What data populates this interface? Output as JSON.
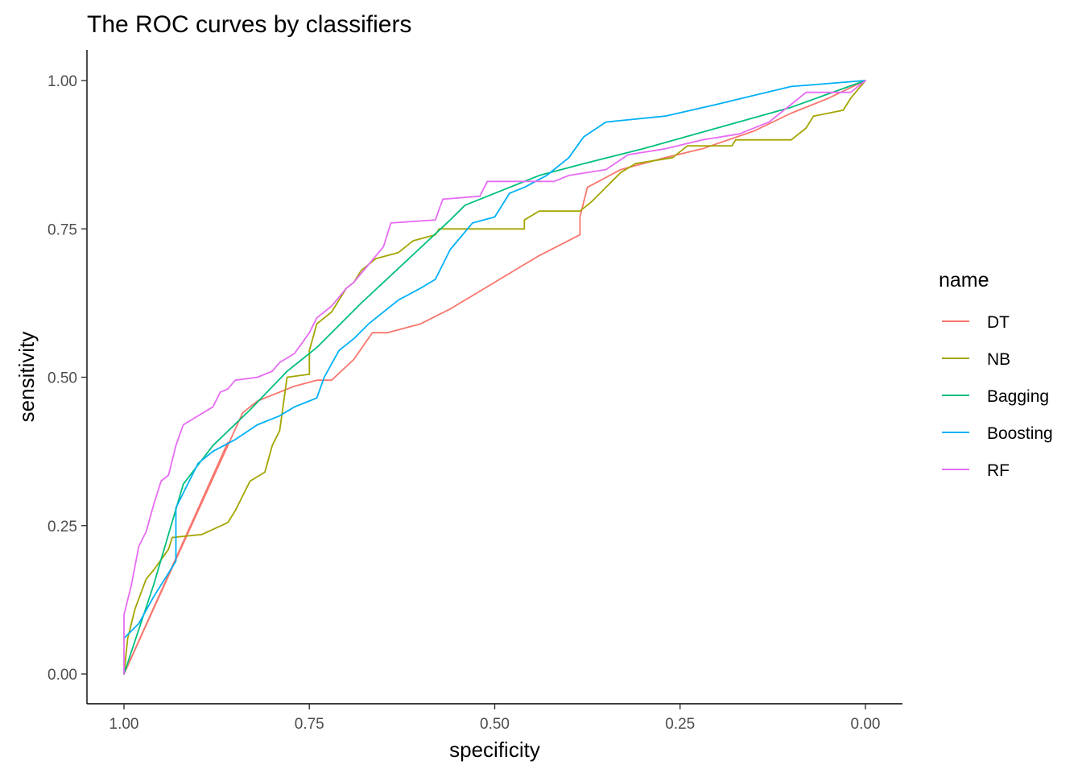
{
  "chart_data": {
    "type": "line",
    "title": "The ROC curves by classifiers",
    "xlabel": "specificity",
    "ylabel": "sensitivity",
    "x_reversed": true,
    "xlim": [
      1.0,
      0.0
    ],
    "ylim": [
      0.0,
      1.0
    ],
    "x_ticks": [
      "1.00",
      "0.75",
      "0.50",
      "0.25",
      "0.00"
    ],
    "y_ticks": [
      "0.00",
      "0.25",
      "0.50",
      "0.75",
      "1.00"
    ],
    "grid": false,
    "legend": {
      "title": "name",
      "position": "right"
    },
    "series": [
      {
        "name": "DT",
        "color": "#F8766D",
        "points": [
          [
            1.0,
            0.0
          ],
          [
            0.84,
            0.44
          ],
          [
            0.82,
            0.46
          ],
          [
            0.77,
            0.485
          ],
          [
            0.74,
            0.495
          ],
          [
            0.72,
            0.495
          ],
          [
            0.69,
            0.53
          ],
          [
            0.665,
            0.575
          ],
          [
            0.645,
            0.575
          ],
          [
            0.6,
            0.59
          ],
          [
            0.56,
            0.615
          ],
          [
            0.52,
            0.645
          ],
          [
            0.48,
            0.675
          ],
          [
            0.44,
            0.705
          ],
          [
            0.385,
            0.74
          ],
          [
            0.385,
            0.77
          ],
          [
            0.375,
            0.82
          ],
          [
            0.33,
            0.85
          ],
          [
            0.27,
            0.87
          ],
          [
            0.22,
            0.885
          ],
          [
            0.15,
            0.915
          ],
          [
            0.1,
            0.945
          ],
          [
            0.05,
            0.97
          ],
          [
            0.0,
            1.0
          ]
        ]
      },
      {
        "name": "DT",
        "color": "#F8766D",
        "secondary": true,
        "points": [
          [
            1.0,
            0.0
          ],
          [
            0.86,
            0.39
          ]
        ]
      },
      {
        "name": "NB",
        "color": "#A3A500",
        "points": [
          [
            1.0,
            0.0
          ],
          [
            0.995,
            0.06
          ],
          [
            0.985,
            0.11
          ],
          [
            0.97,
            0.16
          ],
          [
            0.96,
            0.175
          ],
          [
            0.94,
            0.21
          ],
          [
            0.935,
            0.23
          ],
          [
            0.895,
            0.235
          ],
          [
            0.86,
            0.255
          ],
          [
            0.85,
            0.275
          ],
          [
            0.83,
            0.325
          ],
          [
            0.81,
            0.34
          ],
          [
            0.8,
            0.385
          ],
          [
            0.79,
            0.41
          ],
          [
            0.78,
            0.5
          ],
          [
            0.75,
            0.505
          ],
          [
            0.75,
            0.545
          ],
          [
            0.74,
            0.59
          ],
          [
            0.72,
            0.61
          ],
          [
            0.71,
            0.63
          ],
          [
            0.7,
            0.65
          ],
          [
            0.69,
            0.66
          ],
          [
            0.68,
            0.68
          ],
          [
            0.66,
            0.7
          ],
          [
            0.63,
            0.71
          ],
          [
            0.61,
            0.73
          ],
          [
            0.58,
            0.74
          ],
          [
            0.575,
            0.75
          ],
          [
            0.46,
            0.75
          ],
          [
            0.46,
            0.765
          ],
          [
            0.44,
            0.78
          ],
          [
            0.385,
            0.78
          ],
          [
            0.37,
            0.795
          ],
          [
            0.35,
            0.82
          ],
          [
            0.33,
            0.845
          ],
          [
            0.31,
            0.86
          ],
          [
            0.26,
            0.87
          ],
          [
            0.24,
            0.89
          ],
          [
            0.18,
            0.89
          ],
          [
            0.175,
            0.9
          ],
          [
            0.1,
            0.9
          ],
          [
            0.08,
            0.92
          ],
          [
            0.07,
            0.94
          ],
          [
            0.03,
            0.95
          ],
          [
            0.02,
            0.97
          ],
          [
            0.01,
            0.985
          ],
          [
            0.0,
            1.0
          ]
        ]
      },
      {
        "name": "Bagging",
        "color": "#00BF7D",
        "points": [
          [
            1.0,
            0.0
          ],
          [
            0.96,
            0.15
          ],
          [
            0.92,
            0.32
          ],
          [
            0.88,
            0.385
          ],
          [
            0.83,
            0.445
          ],
          [
            0.78,
            0.51
          ],
          [
            0.74,
            0.55
          ],
          [
            0.68,
            0.625
          ],
          [
            0.62,
            0.695
          ],
          [
            0.56,
            0.765
          ],
          [
            0.54,
            0.79
          ],
          [
            0.48,
            0.82
          ],
          [
            0.44,
            0.84
          ],
          [
            0.38,
            0.86
          ],
          [
            0.3,
            0.885
          ],
          [
            0.2,
            0.92
          ],
          [
            0.1,
            0.955
          ],
          [
            0.0,
            1.0
          ]
        ]
      },
      {
        "name": "Boosting",
        "color": "#00B0F6",
        "points": [
          [
            1.0,
            0.06
          ],
          [
            0.98,
            0.085
          ],
          [
            0.96,
            0.13
          ],
          [
            0.94,
            0.17
          ],
          [
            0.93,
            0.19
          ],
          [
            0.93,
            0.28
          ],
          [
            0.9,
            0.355
          ],
          [
            0.88,
            0.375
          ],
          [
            0.85,
            0.395
          ],
          [
            0.82,
            0.42
          ],
          [
            0.79,
            0.435
          ],
          [
            0.77,
            0.45
          ],
          [
            0.74,
            0.465
          ],
          [
            0.73,
            0.5
          ],
          [
            0.71,
            0.545
          ],
          [
            0.69,
            0.565
          ],
          [
            0.67,
            0.59
          ],
          [
            0.63,
            0.63
          ],
          [
            0.6,
            0.65
          ],
          [
            0.58,
            0.665
          ],
          [
            0.56,
            0.715
          ],
          [
            0.53,
            0.76
          ],
          [
            0.5,
            0.77
          ],
          [
            0.48,
            0.81
          ],
          [
            0.46,
            0.82
          ],
          [
            0.43,
            0.84
          ],
          [
            0.4,
            0.87
          ],
          [
            0.38,
            0.905
          ],
          [
            0.35,
            0.93
          ],
          [
            0.27,
            0.94
          ],
          [
            0.2,
            0.96
          ],
          [
            0.15,
            0.975
          ],
          [
            0.1,
            0.99
          ],
          [
            0.0,
            1.0
          ]
        ]
      },
      {
        "name": "RF",
        "color": "#E76BF3",
        "points": [
          [
            1.0,
            0.0
          ],
          [
            1.0,
            0.1
          ],
          [
            0.99,
            0.15
          ],
          [
            0.98,
            0.215
          ],
          [
            0.97,
            0.24
          ],
          [
            0.96,
            0.285
          ],
          [
            0.95,
            0.325
          ],
          [
            0.94,
            0.335
          ],
          [
            0.93,
            0.385
          ],
          [
            0.92,
            0.42
          ],
          [
            0.9,
            0.435
          ],
          [
            0.88,
            0.45
          ],
          [
            0.87,
            0.475
          ],
          [
            0.86,
            0.48
          ],
          [
            0.85,
            0.495
          ],
          [
            0.82,
            0.5
          ],
          [
            0.8,
            0.51
          ],
          [
            0.79,
            0.525
          ],
          [
            0.77,
            0.54
          ],
          [
            0.75,
            0.575
          ],
          [
            0.74,
            0.6
          ],
          [
            0.72,
            0.62
          ],
          [
            0.7,
            0.65
          ],
          [
            0.69,
            0.66
          ],
          [
            0.67,
            0.69
          ],
          [
            0.65,
            0.72
          ],
          [
            0.64,
            0.76
          ],
          [
            0.58,
            0.765
          ],
          [
            0.57,
            0.8
          ],
          [
            0.52,
            0.805
          ],
          [
            0.51,
            0.83
          ],
          [
            0.42,
            0.83
          ],
          [
            0.4,
            0.84
          ],
          [
            0.35,
            0.85
          ],
          [
            0.32,
            0.875
          ],
          [
            0.27,
            0.885
          ],
          [
            0.22,
            0.9
          ],
          [
            0.17,
            0.91
          ],
          [
            0.13,
            0.93
          ],
          [
            0.1,
            0.96
          ],
          [
            0.08,
            0.98
          ],
          [
            0.02,
            0.98
          ],
          [
            0.0,
            1.0
          ]
        ]
      }
    ]
  }
}
